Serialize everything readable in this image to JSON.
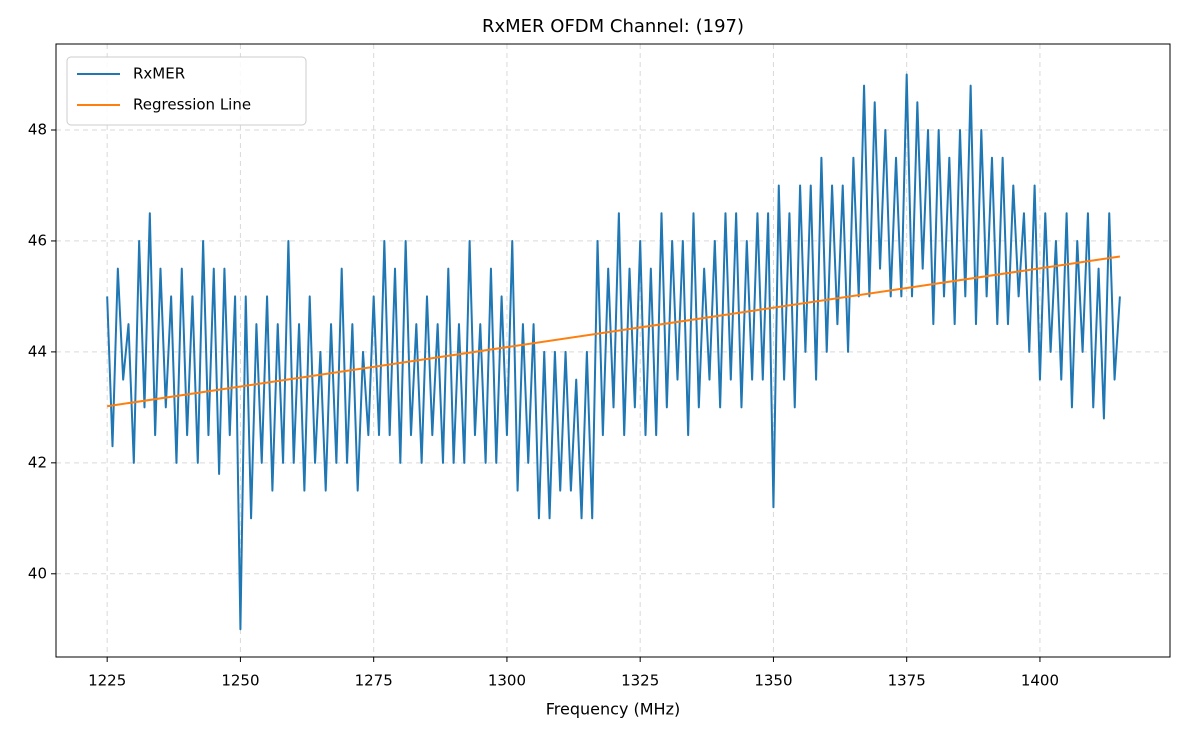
{
  "chart_data": {
    "type": "line",
    "title": "RxMER OFDM Channel: (197)",
    "xlabel": "Frequency (MHz)",
    "xlim": [
      1215.4,
      1424.4
    ],
    "ylim": [
      38.5,
      49.55
    ],
    "xticks": [
      1225,
      1250,
      1275,
      1300,
      1325,
      1350,
      1375,
      1400
    ],
    "yticks": [
      40,
      42,
      44,
      46,
      48
    ],
    "grid": true,
    "legend": "upper left",
    "series": [
      {
        "name": "RxMER",
        "color": "#1f77b4",
        "x": [
          1225,
          1226,
          1227,
          1228,
          1229,
          1230,
          1231,
          1232,
          1233,
          1234,
          1235,
          1236,
          1237,
          1238,
          1239,
          1240,
          1241,
          1242,
          1243,
          1244,
          1245,
          1246,
          1247,
          1248,
          1249,
          1250,
          1251,
          1252,
          1253,
          1254,
          1255,
          1256,
          1257,
          1258,
          1259,
          1260,
          1261,
          1262,
          1263,
          1264,
          1265,
          1266,
          1267,
          1268,
          1269,
          1270,
          1271,
          1272,
          1273,
          1274,
          1275,
          1276,
          1277,
          1278,
          1279,
          1280,
          1281,
          1282,
          1283,
          1284,
          1285,
          1286,
          1287,
          1288,
          1289,
          1290,
          1291,
          1292,
          1293,
          1294,
          1295,
          1296,
          1297,
          1298,
          1299,
          1300,
          1301,
          1302,
          1303,
          1304,
          1305,
          1306,
          1307,
          1308,
          1309,
          1310,
          1311,
          1312,
          1313,
          1314,
          1315,
          1316,
          1317,
          1318,
          1319,
          1320,
          1321,
          1322,
          1323,
          1324,
          1325,
          1326,
          1327,
          1328,
          1329,
          1330,
          1331,
          1332,
          1333,
          1334,
          1335,
          1336,
          1337,
          1338,
          1339,
          1340,
          1341,
          1342,
          1343,
          1344,
          1345,
          1346,
          1347,
          1348,
          1349,
          1350,
          1351,
          1352,
          1353,
          1354,
          1355,
          1356,
          1357,
          1358,
          1359,
          1360,
          1361,
          1362,
          1363,
          1364,
          1365,
          1366,
          1367,
          1368,
          1369,
          1370,
          1371,
          1372,
          1373,
          1374,
          1375,
          1376,
          1377,
          1378,
          1379,
          1380,
          1381,
          1382,
          1383,
          1384,
          1385,
          1386,
          1387,
          1388,
          1389,
          1390,
          1391,
          1392,
          1393,
          1394,
          1395,
          1396,
          1397,
          1398,
          1399,
          1400,
          1401,
          1402,
          1403,
          1404,
          1405,
          1406,
          1407,
          1408,
          1409,
          1410,
          1411,
          1412,
          1413,
          1414,
          1415
        ],
        "values": [
          45.0,
          42.3,
          45.5,
          43.5,
          44.5,
          42.0,
          46.0,
          43.0,
          46.5,
          42.5,
          45.5,
          43.0,
          45.0,
          42.0,
          45.5,
          42.5,
          45.0,
          42.0,
          46.0,
          42.5,
          45.5,
          41.8,
          45.5,
          42.5,
          45.0,
          39.0,
          45.0,
          41.0,
          44.5,
          42.0,
          45.0,
          41.5,
          44.5,
          42.0,
          46.0,
          42.0,
          44.5,
          41.5,
          45.0,
          42.0,
          44.0,
          41.5,
          44.5,
          42.0,
          45.5,
          42.0,
          44.5,
          41.5,
          44.0,
          42.5,
          45.0,
          42.5,
          46.0,
          42.5,
          45.5,
          42.0,
          46.0,
          42.5,
          44.5,
          42.0,
          45.0,
          42.5,
          44.5,
          42.0,
          45.5,
          42.0,
          44.5,
          42.0,
          46.0,
          42.5,
          44.5,
          42.0,
          45.5,
          42.0,
          45.0,
          42.5,
          46.0,
          41.5,
          44.5,
          42.0,
          44.5,
          41.0,
          44.0,
          41.0,
          44.0,
          41.5,
          44.0,
          41.5,
          43.5,
          41.0,
          44.0,
          41.0,
          46.0,
          42.5,
          45.5,
          43.0,
          46.5,
          42.5,
          45.5,
          43.0,
          46.0,
          42.5,
          45.5,
          42.5,
          46.5,
          43.0,
          46.0,
          43.5,
          46.0,
          42.5,
          46.5,
          43.0,
          45.5,
          43.5,
          46.0,
          43.0,
          46.5,
          43.5,
          46.5,
          43.0,
          46.0,
          43.5,
          46.5,
          43.5,
          46.5,
          41.2,
          47.0,
          43.5,
          46.5,
          43.0,
          47.0,
          44.0,
          47.0,
          43.5,
          47.5,
          44.0,
          47.0,
          44.5,
          47.0,
          44.0,
          47.5,
          45.0,
          48.8,
          45.0,
          48.5,
          45.5,
          48.0,
          45.0,
          47.5,
          45.0,
          49.0,
          45.0,
          48.5,
          45.5,
          48.0,
          44.5,
          48.0,
          45.0,
          47.5,
          44.5,
          48.0,
          45.0,
          48.8,
          44.5,
          48.0,
          45.0,
          47.5,
          44.5,
          47.5,
          44.5,
          47.0,
          45.0,
          46.5,
          44.0,
          47.0,
          43.5,
          46.5,
          44.0,
          46.0,
          43.5,
          46.5,
          43.0,
          46.0,
          44.0,
          46.5,
          43.0,
          45.5,
          42.8,
          46.5,
          43.5,
          45.0
        ]
      },
      {
        "name": "Regression Line",
        "color": "#ff7f0e",
        "x": [
          1225,
          1415
        ],
        "values": [
          43.02,
          45.72
        ]
      }
    ]
  }
}
